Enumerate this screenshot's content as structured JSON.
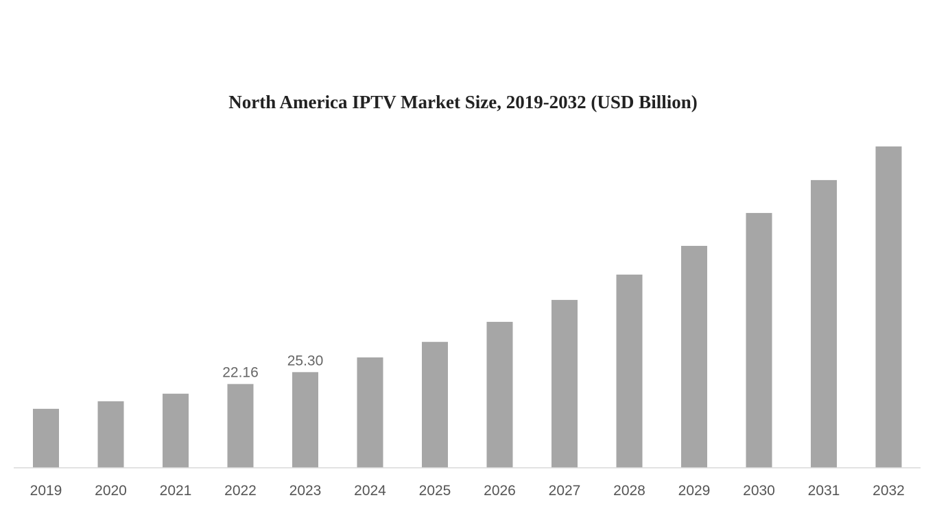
{
  "chart_data": {
    "type": "bar",
    "title": "North America IPTV Market Size, 2019-2032 (USD Billion)",
    "xlabel": "",
    "ylabel": "",
    "categories": [
      "2019",
      "2020",
      "2021",
      "2022",
      "2023",
      "2024",
      "2025",
      "2026",
      "2027",
      "2028",
      "2029",
      "2030",
      "2031",
      "2032"
    ],
    "values": [
      15.6,
      17.6,
      19.6,
      22.16,
      25.3,
      29.2,
      33.3,
      38.6,
      44.4,
      51.1,
      58.7,
      67.4,
      76.1,
      85.0
    ],
    "data_labels": {
      "2022": "22.16",
      "2023": "25.30"
    },
    "ylim": [
      0,
      100
    ],
    "grid": false,
    "bar_color": "#a6a6a6",
    "axis_color": "#d9d9d9"
  }
}
